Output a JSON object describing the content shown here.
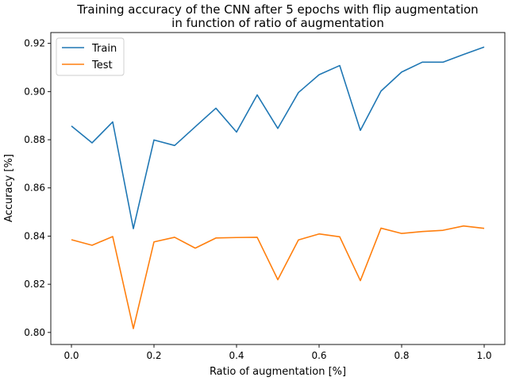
{
  "chart_data": {
    "type": "line",
    "title": "Training accuracy of the CNN after 5 epochs with flip augmentation",
    "subtitle": "in function of ratio of augmentation",
    "xlabel": "Ratio of augmentation [%]",
    "ylabel": "Accuracy [%]",
    "xlim": [
      -0.05,
      1.05
    ],
    "ylim": [
      0.795,
      0.9245
    ],
    "xticks": [
      0.0,
      0.2,
      0.4,
      0.6,
      0.8,
      1.0
    ],
    "xtick_labels": [
      "0.0",
      "0.2",
      "0.4",
      "0.6",
      "0.8",
      "1.0"
    ],
    "yticks": [
      0.8,
      0.82,
      0.84,
      0.86,
      0.88,
      0.9,
      0.92
    ],
    "ytick_labels": [
      "0.80",
      "0.82",
      "0.84",
      "0.86",
      "0.88",
      "0.90",
      "0.92"
    ],
    "grid": false,
    "legend_position": "top-left",
    "x": [
      0.0,
      0.05,
      0.1,
      0.15,
      0.2,
      0.25,
      0.3,
      0.35,
      0.4,
      0.45,
      0.5,
      0.55,
      0.6,
      0.65,
      0.7,
      0.75,
      0.8,
      0.85,
      0.9,
      0.95,
      1.0
    ],
    "series": [
      {
        "name": "Train",
        "color": "#1f77b4",
        "values": [
          0.8857,
          0.8787,
          0.8874,
          0.8431,
          0.8799,
          0.8776,
          0.8854,
          0.8931,
          0.8832,
          0.8986,
          0.8847,
          0.8996,
          0.907,
          0.9108,
          0.8839,
          0.9002,
          0.9081,
          0.9122,
          0.9122,
          0.9154,
          0.9185
        ]
      },
      {
        "name": "Test",
        "color": "#ff7f0e",
        "values": [
          0.8385,
          0.8362,
          0.8398,
          0.8016,
          0.8376,
          0.8395,
          0.835,
          0.8392,
          0.8394,
          0.8395,
          0.8219,
          0.8384,
          0.8409,
          0.8397,
          0.8215,
          0.8433,
          0.8411,
          0.8419,
          0.8424,
          0.8442,
          0.8432
        ]
      }
    ]
  }
}
